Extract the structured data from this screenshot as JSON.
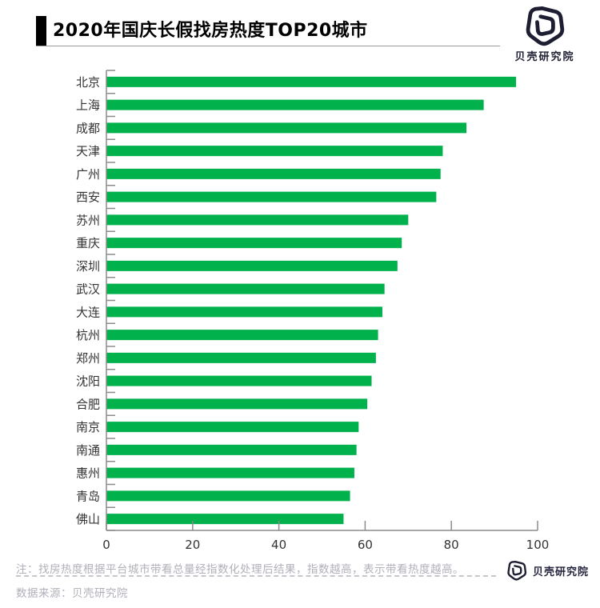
{
  "header": {
    "title": "2020年国庆长假找房热度TOP20城市",
    "logo_text": "贝壳研究院"
  },
  "chart_data": {
    "type": "bar",
    "orientation": "horizontal",
    "title": "2020年国庆长假找房热度TOP20城市",
    "categories": [
      "北京",
      "上海",
      "成都",
      "天津",
      "广州",
      "西安",
      "苏州",
      "重庆",
      "深圳",
      "武汉",
      "大连",
      "杭州",
      "郑州",
      "沈阳",
      "合肥",
      "南京",
      "南通",
      "惠州",
      "青岛",
      "佛山"
    ],
    "values": [
      95,
      87.5,
      83.5,
      78,
      77.5,
      76.5,
      70,
      68.5,
      67.5,
      64.5,
      64,
      63,
      62.5,
      61.5,
      60.5,
      58.5,
      58,
      57.5,
      56.5,
      55
    ],
    "xlabel": "",
    "ylabel": "",
    "xlim": [
      0,
      100
    ],
    "x_ticks": [
      0,
      20,
      40,
      60,
      80,
      100
    ],
    "grid": false,
    "legend": false,
    "bar_color": "#00b14c",
    "axis_color": "#8c8c8c",
    "label_color": "#333333"
  },
  "footer": {
    "note": "注：找房热度根据平台城市带看总量经指数化处理后结果，指数越高，表示带看热度越高。",
    "source": "数据来源：贝壳研究院",
    "logo_text": "贝壳研究院"
  },
  "colors": {
    "bar_green": "#00b14c",
    "title_black": "#000000",
    "axis_gray": "#8c8c8c",
    "footer_gray": "#b0b0ba",
    "logo_dark": "#1e1e32"
  }
}
